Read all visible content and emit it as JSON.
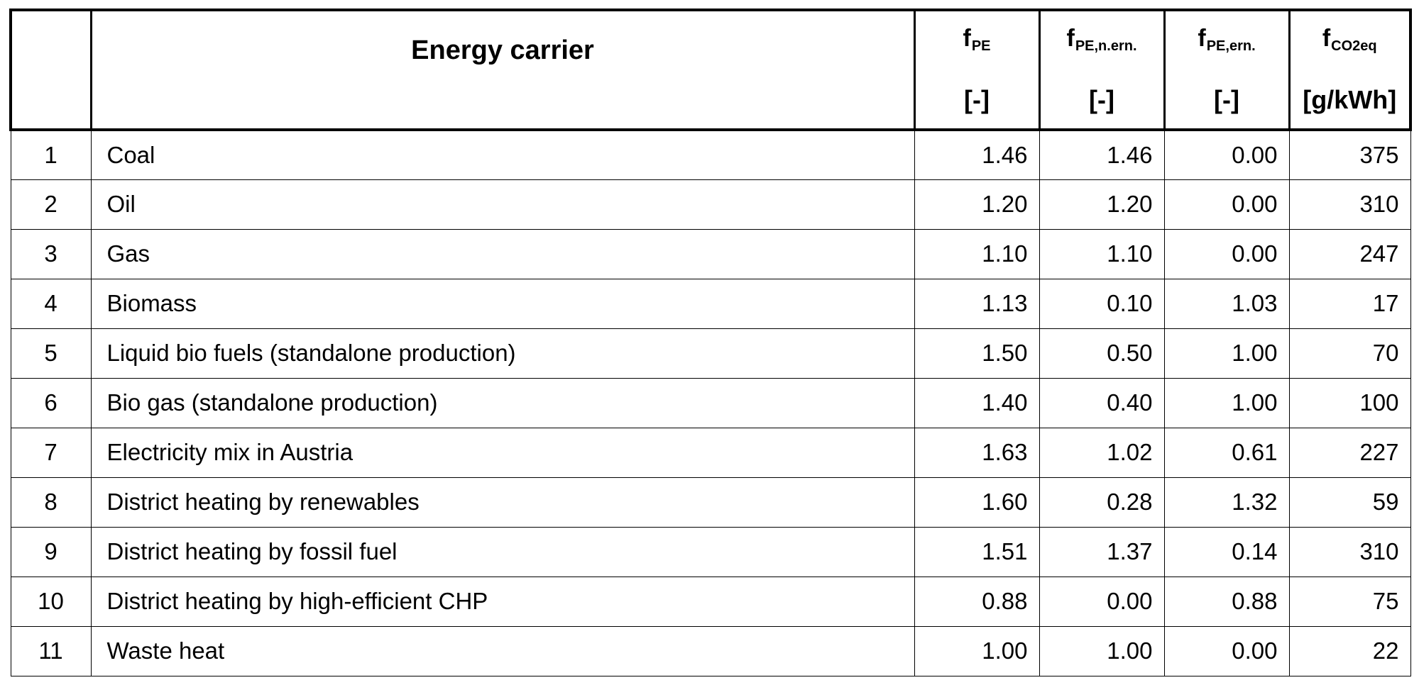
{
  "table": {
    "header": {
      "no": "",
      "carrier": "Energy carrier",
      "columns": [
        {
          "base": "f",
          "sub": "PE",
          "unit": "[-]"
        },
        {
          "base": "f",
          "sub": "PE,n.ern.",
          "unit": "[-]"
        },
        {
          "base": "f",
          "sub": "PE,ern.",
          "unit": "[-]"
        },
        {
          "base": "f",
          "sub": "CO2eq",
          "unit": "[g/kWh]"
        }
      ]
    },
    "rows": [
      {
        "no": "1",
        "carrier": "Coal",
        "f_pe": "1.46",
        "f_pe_nern": "1.46",
        "f_pe_ern": "0.00",
        "f_co2": "375"
      },
      {
        "no": "2",
        "carrier": "Oil",
        "f_pe": "1.20",
        "f_pe_nern": "1.20",
        "f_pe_ern": "0.00",
        "f_co2": "310"
      },
      {
        "no": "3",
        "carrier": "Gas",
        "f_pe": "1.10",
        "f_pe_nern": "1.10",
        "f_pe_ern": "0.00",
        "f_co2": "247"
      },
      {
        "no": "4",
        "carrier": "Biomass",
        "f_pe": "1.13",
        "f_pe_nern": "0.10",
        "f_pe_ern": "1.03",
        "f_co2": "17"
      },
      {
        "no": "5",
        "carrier": "Liquid bio fuels (standalone production)",
        "f_pe": "1.50",
        "f_pe_nern": "0.50",
        "f_pe_ern": "1.00",
        "f_co2": "70"
      },
      {
        "no": "6",
        "carrier": "Bio gas (standalone production)",
        "f_pe": "1.40",
        "f_pe_nern": "0.40",
        "f_pe_ern": "1.00",
        "f_co2": "100"
      },
      {
        "no": "7",
        "carrier": "Electricity mix in Austria",
        "f_pe": "1.63",
        "f_pe_nern": "1.02",
        "f_pe_ern": "0.61",
        "f_co2": "227"
      },
      {
        "no": "8",
        "carrier": "District heating by renewables",
        "f_pe": "1.60",
        "f_pe_nern": "0.28",
        "f_pe_ern": "1.32",
        "f_co2": "59"
      },
      {
        "no": "9",
        "carrier": "District heating by fossil fuel",
        "f_pe": "1.51",
        "f_pe_nern": "1.37",
        "f_pe_ern": "0.14",
        "f_co2": "310"
      },
      {
        "no": "10",
        "carrier": "District heating by high-efficient CHP",
        "f_pe": "0.88",
        "f_pe_nern": "0.00",
        "f_pe_ern": "0.88",
        "f_co2": "75"
      },
      {
        "no": "11",
        "carrier": "Waste heat",
        "f_pe": "1.00",
        "f_pe_nern": "1.00",
        "f_pe_ern": "0.00",
        "f_co2": "22"
      }
    ]
  }
}
